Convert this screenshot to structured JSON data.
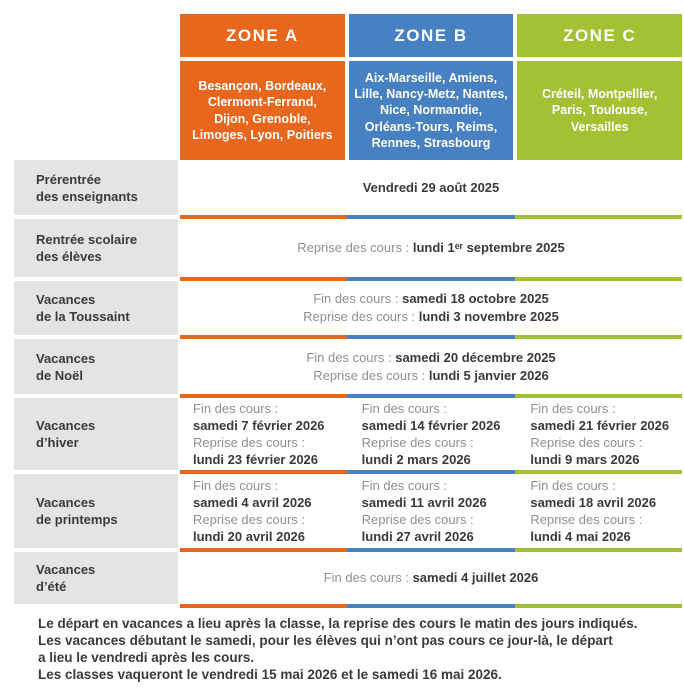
{
  "labels": {
    "fin": "Fin des cours :",
    "reprise": "Reprise des cours :"
  },
  "zones": [
    {
      "name": "ZONE A",
      "color": "#E8671C",
      "cities": "Besançon, Bordeaux,\nClermont-Ferrand,\nDijon, Grenoble,\nLimoges, Lyon, Poitiers"
    },
    {
      "name": "ZONE B",
      "color": "#4781C1",
      "cities": "Aix-Marseille, Amiens,\nLille, Nancy-Metz, Nantes,\nNice, Normandie,\nOrléans-Tours, Reims,\nRennes, Strasbourg"
    },
    {
      "name": "ZONE C",
      "color": "#A2C233",
      "cities": "Créteil, Montpellier,\nParis, Toulouse,\nVersailles"
    }
  ],
  "rows": [
    {
      "label": "Prérentrée\ndes enseignants",
      "value": "Vendredi 29 août 2025"
    },
    {
      "label": "Rentrée scolaire\ndes élèves",
      "value": "lundi 1ᵉʳ septembre 2025"
    },
    {
      "label": "Vacances\nde la Toussaint",
      "fin": "samedi 18 octobre 2025",
      "reprise": "lundi 3 novembre 2025"
    },
    {
      "label": "Vacances\nde Noël",
      "fin": "samedi 20 décembre 2025",
      "reprise": "lundi 5 janvier 2026"
    },
    {
      "label": "Vacances\nd’hiver",
      "zones": [
        {
          "fin": "samedi 7 février 2026",
          "reprise": "lundi 23 février 2026"
        },
        {
          "fin": "samedi 14 février 2026",
          "reprise": "lundi 2 mars 2026"
        },
        {
          "fin": "samedi 21 février 2026",
          "reprise": "lundi 9 mars 2026"
        }
      ]
    },
    {
      "label": "Vacances\nde printemps",
      "zones": [
        {
          "fin": "samedi 4 avril 2026",
          "reprise": "lundi 20 avril 2026"
        },
        {
          "fin": "samedi 11 avril 2026",
          "reprise": "lundi 27 avril 2026"
        },
        {
          "fin": "samedi 18 avril 2026",
          "reprise": "lundi 4 mai 2026"
        }
      ]
    },
    {
      "label": "Vacances\nd’été",
      "fin": "samedi 4 juillet 2026"
    }
  ],
  "footer": {
    "lines": [
      "Le départ en vacances a lieu après la classe, la reprise des cours le matin des jours indiqués.",
      "Les vacances débutant le samedi, pour les élèves qui n’ont pas cours ce jour-là, le départ",
      "a lieu le vendredi après les cours.",
      "Les classes vaqueront le vendredi 15 mai 2026 et le samedi 16 mai 2026."
    ]
  },
  "colors": {
    "zone_a_orange": "#E8671C",
    "zone_b_blue": "#4781C1",
    "zone_c_green": "#A2C233",
    "label_background": "#E5E4E3",
    "dark_text": "#3A3A39",
    "gray_text": "#90908F"
  }
}
